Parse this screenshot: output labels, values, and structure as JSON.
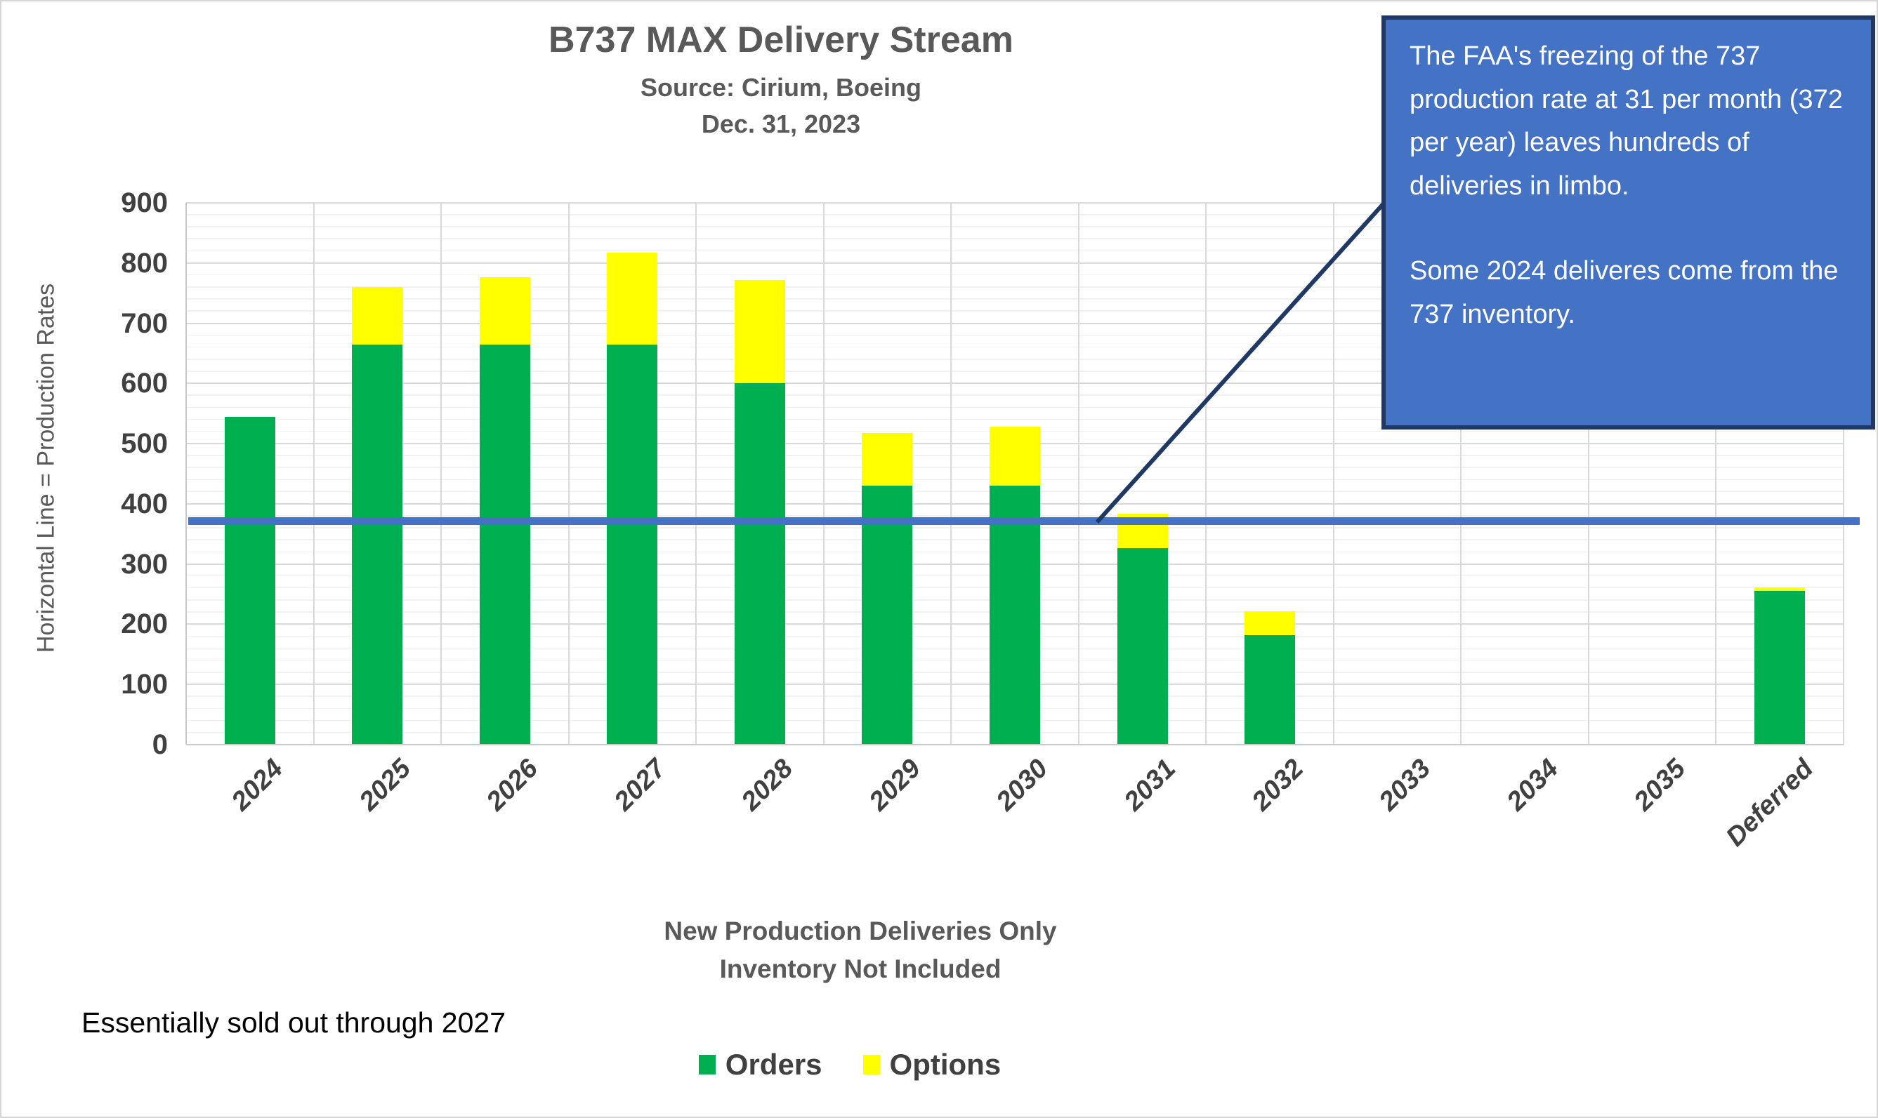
{
  "title": {
    "main": "B737 MAX Delivery Stream",
    "source": "Source: Cirium, Boeing",
    "date": "Dec. 31, 2023"
  },
  "y_axis": {
    "title": "Horizontal Line = Production Rates"
  },
  "annotation_box": {
    "paragraph1": "The FAA's freezing of the 737 production rate at 31 per month (372 per year) leaves hundreds of deliveries in limbo.",
    "paragraph2": "Some 2024 deliveres come from the 737 inventory.",
    "fill_color": "#4472C4",
    "border_color": "#1F3864",
    "text_color": "#FFFFFF"
  },
  "notes": {
    "sold_out": "Essentially sold out through 2027",
    "footer_line1": "New Production Deliveries Only",
    "footer_line2": "Inventory Not Included"
  },
  "legend": [
    {
      "label": "Orders",
      "color": "#00B050"
    },
    {
      "label": "Options",
      "color": "#FFFF00"
    }
  ],
  "colors": {
    "orders_green": "#00B050",
    "options_yellow": "#FFFF00",
    "production_line_blue": "#4472C4",
    "callout_navy_border": "#1F3864",
    "title_gray": "#595959",
    "axis_label_gray": "#404040",
    "major_grid": "#D9D9D9",
    "minor_grid": "#F1F1F1"
  },
  "chart_data": {
    "type": "bar",
    "stacked": true,
    "title": "B737 MAX Delivery Stream",
    "categories": [
      "2024",
      "2025",
      "2026",
      "2027",
      "2028",
      "2029",
      "2030",
      "2031",
      "2032",
      "2033",
      "2034",
      "2035",
      "Deferred"
    ],
    "series": [
      {
        "name": "Orders",
        "color": "#00B050",
        "values": [
          545,
          665,
          665,
          665,
          600,
          430,
          430,
          327,
          182,
          0,
          0,
          0,
          255
        ]
      },
      {
        "name": "Options",
        "color": "#FFFF00",
        "values": [
          0,
          95,
          112,
          152,
          172,
          88,
          98,
          57,
          40,
          0,
          0,
          0,
          6
        ]
      }
    ],
    "reference_line": {
      "value": 372,
      "color": "#4472C4",
      "meaning": "Production rate (31 per month, 372 per year)"
    },
    "ylim": [
      0,
      900
    ],
    "y_tick_step": 100,
    "y_minor_step": 20,
    "grid": true,
    "legend_position": "bottom",
    "xlabel": "",
    "ylabel": "Horizontal Line = Production Rates"
  }
}
